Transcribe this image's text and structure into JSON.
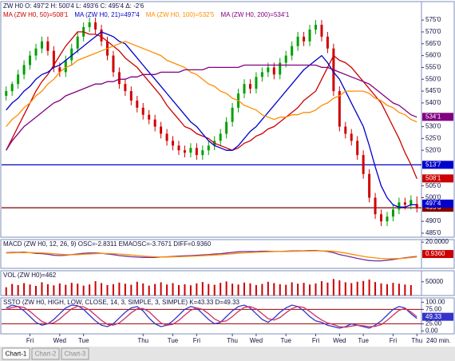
{
  "chart_data": [
    {
      "type": "candlestick",
      "title": "ZW H0 O: 497'2 H: 500'4 L: 493'6 C: 495'4 Δ: -2'6",
      "categories": [
        null,
        null,
        null,
        null,
        "Fri",
        null,
        null,
        null,
        null,
        "Wed",
        null,
        null,
        null,
        "Tue",
        null,
        null,
        null,
        null,
        null,
        null,
        null,
        null,
        null,
        "Thu",
        null,
        null,
        null,
        null,
        "Tue",
        null,
        null,
        null,
        "Fri",
        null,
        null,
        null,
        null,
        null,
        "Thu",
        null,
        null,
        null,
        "Wed",
        null,
        null,
        null,
        null,
        "Tue",
        null,
        null,
        null,
        null,
        "Fri",
        null,
        null,
        null,
        "Wed",
        null,
        null,
        null,
        "Tue",
        null,
        null,
        null,
        null,
        "Fri",
        null,
        null,
        null,
        "Thu"
      ],
      "open": [
        543,
        545,
        548,
        552,
        556,
        560,
        563,
        566,
        562,
        555,
        553,
        558,
        563,
        568,
        572,
        574,
        571,
        566,
        560,
        553,
        548,
        545,
        541,
        538,
        535,
        533,
        530,
        527,
        524,
        522,
        520,
        519,
        521,
        518,
        520,
        522,
        524,
        527,
        532,
        538,
        544,
        548,
        546,
        551,
        553,
        555,
        552,
        557,
        560,
        564,
        568,
        566,
        571,
        573,
        568,
        563,
        545,
        530,
        527,
        524,
        518,
        510,
        500,
        493,
        490,
        492,
        495,
        498,
        497,
        497.25
      ],
      "high": [
        547,
        549,
        554,
        558,
        562,
        565,
        568,
        568,
        564,
        557,
        560,
        565,
        570,
        574,
        576,
        576,
        573,
        568,
        562,
        555,
        550,
        547,
        543,
        540,
        537,
        535,
        532,
        529,
        526,
        524,
        522,
        523,
        523,
        522,
        524,
        526,
        529,
        534,
        540,
        546,
        550,
        550,
        553,
        555,
        557,
        557,
        559,
        562,
        566,
        570,
        570,
        573,
        575,
        575,
        570,
        565,
        547,
        532,
        529,
        526,
        520,
        512,
        502,
        495,
        494,
        497,
        500,
        500,
        501,
        500.5
      ],
      "low": [
        541,
        543,
        546,
        550,
        554,
        558,
        561,
        560,
        553,
        551,
        551,
        556,
        561,
        566,
        570,
        569,
        564,
        558,
        551,
        546,
        543,
        539,
        536,
        533,
        531,
        528,
        525,
        522,
        520,
        518,
        517,
        517,
        516,
        516,
        518,
        520,
        522,
        525,
        530,
        536,
        542,
        544,
        544,
        549,
        551,
        550,
        550,
        555,
        558,
        562,
        564,
        564,
        569,
        566,
        561,
        543,
        528,
        525,
        522,
        516,
        508,
        498,
        491,
        488,
        488,
        490,
        493,
        495,
        495,
        493.75
      ],
      "close": [
        545,
        548,
        552,
        556,
        560,
        563,
        566,
        562,
        555,
        553,
        558,
        563,
        568,
        572,
        574,
        571,
        566,
        560,
        553,
        548,
        545,
        541,
        538,
        535,
        533,
        530,
        527,
        524,
        522,
        520,
        519,
        521,
        518,
        520,
        522,
        524,
        527,
        532,
        538,
        544,
        548,
        546,
        551,
        553,
        555,
        552,
        557,
        560,
        564,
        568,
        566,
        571,
        573,
        568,
        563,
        545,
        530,
        527,
        524,
        518,
        510,
        500,
        493,
        490,
        492,
        495,
        498,
        497,
        499,
        495.5
      ],
      "up_color": "#00a000",
      "down_color": "#d00000",
      "series": [
        {
          "name": "MA (ZW H0, 50)=508'1",
          "color": "#cc0000",
          "values": [
            520,
            525,
            530,
            535,
            540,
            545,
            549,
            552,
            556,
            560,
            564,
            567,
            570,
            570,
            569,
            569,
            568,
            566,
            564,
            562,
            559,
            557,
            555,
            552,
            549,
            546,
            543,
            539,
            536,
            533,
            530,
            529,
            527,
            526,
            525,
            523,
            522,
            521,
            520,
            521,
            523,
            524,
            526,
            527,
            529,
            530,
            532,
            534,
            536,
            538,
            541,
            543,
            545,
            550,
            555,
            560,
            558,
            557,
            555,
            552,
            549,
            546,
            543,
            540,
            535,
            530,
            525,
            519,
            514,
            508
          ]
        },
        {
          "name": "MA (ZW H0, 21)=497'4",
          "color": "#0000cc",
          "values": [
            537,
            540,
            542,
            545,
            547,
            550,
            552,
            553,
            555,
            556,
            558,
            560,
            562,
            564,
            566,
            568,
            570,
            569,
            568,
            566,
            565,
            562,
            559,
            556,
            553,
            550,
            547,
            544,
            541,
            538,
            535,
            532,
            530,
            527,
            524,
            522,
            521,
            520,
            520,
            522,
            525,
            528,
            530,
            533,
            536,
            539,
            542,
            545,
            548,
            551,
            554,
            556,
            558,
            560,
            557,
            553,
            550,
            545,
            540,
            535,
            530,
            522,
            513,
            505,
            500,
            497,
            496,
            496,
            497,
            497
          ]
        },
        {
          "name": "MA (ZW H0, 100)=532'5",
          "color": "#ff8c00",
          "values": [
            530,
            533,
            535,
            538,
            540,
            543,
            545,
            548,
            550,
            553,
            555,
            556,
            558,
            559,
            560,
            561,
            562,
            563,
            564,
            565,
            566,
            565,
            564,
            563,
            562,
            561,
            560,
            558,
            557,
            556,
            555,
            553,
            552,
            550,
            548,
            547,
            545,
            544,
            542,
            541,
            539,
            538,
            537,
            535,
            534,
            533,
            534,
            534,
            535,
            535,
            536,
            536,
            537,
            539,
            540,
            542,
            543,
            545,
            545,
            545,
            545,
            544,
            542,
            541,
            539,
            538,
            536,
            535,
            533,
            532
          ]
        },
        {
          "name": "MA (ZW H0, 200)=534'1",
          "color": "#800080",
          "values": [
            520,
            524,
            527,
            530,
            532,
            534,
            536,
            538,
            540,
            541,
            543,
            544,
            545,
            546,
            547,
            548,
            548,
            549,
            549,
            550,
            550,
            551,
            551,
            552,
            552,
            552,
            553,
            553,
            553,
            553,
            554,
            554,
            554,
            554,
            555,
            555,
            555,
            555,
            555,
            555,
            556,
            556,
            556,
            556,
            556,
            556,
            556,
            556,
            556,
            556,
            556,
            556,
            556,
            555,
            555,
            554,
            553,
            552,
            551,
            550,
            549,
            548,
            546,
            544,
            542,
            540,
            539,
            537,
            535,
            534
          ]
        }
      ],
      "ylim": [
        483.3,
        582.8
      ],
      "yticks": [
        {
          "value": 575,
          "label": "575'0"
        },
        {
          "value": 570,
          "label": "570'0"
        },
        {
          "value": 565,
          "label": "565'0"
        },
        {
          "value": 560,
          "label": "560'0"
        },
        {
          "value": 555,
          "label": "555'0"
        },
        {
          "value": 550,
          "label": "550'0"
        },
        {
          "value": 545,
          "label": "545'0"
        },
        {
          "value": 540,
          "label": "540'0"
        },
        {
          "value": 530,
          "label": "530'0"
        },
        {
          "value": 525,
          "label": "525'0"
        },
        {
          "value": 520,
          "label": "520'0"
        },
        {
          "value": 505,
          "label": "505'0"
        },
        {
          "value": 500,
          "label": "500'0"
        },
        {
          "value": 490,
          "label": "490'0"
        },
        {
          "value": 485,
          "label": "485'0"
        }
      ],
      "hlines": [
        {
          "value": 513.875,
          "label": "513'7",
          "color": "#0000cc"
        },
        {
          "value": 495.75,
          "label": "495'6",
          "color": "#800000"
        }
      ],
      "flags": [
        {
          "value": 534.125,
          "label": "534'1",
          "color": "#800080"
        },
        {
          "value": 508.125,
          "label": "508'1",
          "color": "#cc0000"
        },
        {
          "value": 497.5,
          "label": "497'4",
          "color": "#0000cc"
        }
      ]
    },
    {
      "type": "line",
      "title": "MACD (ZW H0, 12, 26, 9) OSC=-2.8311 EMAOSC=-3.7671 DIFF=0.9360",
      "series": [
        {
          "color": "#7030a0",
          "values": [
            3,
            3.5,
            3.5,
            4,
            3,
            2,
            1.5,
            0.5,
            -1,
            -1.5,
            -1,
            0,
            1,
            2,
            2.5,
            2.5,
            2,
            1,
            0,
            -1.5,
            -2.5,
            -3.5,
            -4,
            -4.5,
            -4.5,
            -4.5,
            -4,
            -3.5,
            -3,
            -2.5,
            -2,
            -1.5,
            -1,
            -0.5,
            0,
            1,
            1.5,
            2.5,
            3.5,
            4.5,
            5,
            5,
            5,
            5.5,
            5.5,
            5,
            5,
            5.5,
            6,
            6,
            6,
            6.5,
            6.5,
            6,
            5,
            3,
            0,
            -2,
            -4,
            -6,
            -8,
            -9.5,
            -10,
            -10,
            -9,
            -8,
            -6.5,
            -5,
            -4,
            -2.8311
          ]
        },
        {
          "color": "#ff8c00",
          "values": [
            2.5,
            2.8,
            3,
            3.2,
            3.3,
            3,
            2.6,
            2,
            1.3,
            0.6,
            0,
            -0.3,
            0,
            0.5,
            1,
            1.5,
            1.8,
            1.8,
            1.5,
            0.9,
            0.2,
            -0.7,
            -1.5,
            -2.3,
            -3,
            -3.5,
            -3.8,
            -3.8,
            -3.6,
            -3.3,
            -3,
            -2.6,
            -2.2,
            -1.7,
            -1.2,
            -0.6,
            0,
            0.7,
            1.4,
            2.1,
            2.8,
            3.4,
            3.8,
            4.2,
            4.6,
            4.8,
            4.9,
            5,
            5.2,
            5.4,
            5.6,
            5.8,
            6,
            6,
            5.8,
            5.2,
            4,
            2.5,
            0.8,
            -1,
            -2.8,
            -4.2,
            -5.3,
            -6.1,
            -6.5,
            -6.6,
            -6.3,
            -5.6,
            -4.7,
            -3.7671
          ]
        }
      ],
      "ylim": [
        -22,
        24
      ],
      "yticks": [
        {
          "value": 20,
          "label": "20.0000"
        }
      ],
      "flags": [
        {
          "value": 0.936,
          "label": "0.9360",
          "color": "#cc0000"
        }
      ]
    },
    {
      "type": "bar",
      "title": "VOL (ZW H0)=462",
      "color": "#cc0000",
      "values": [
        30000,
        42000,
        38000,
        45000,
        40000,
        35000,
        48000,
        41000,
        37000,
        44000,
        39000,
        46000,
        43000,
        36000,
        40000,
        52000,
        45000,
        38000,
        41000,
        47000,
        43000,
        39000,
        50000,
        44000,
        36000,
        42000,
        48000,
        40000,
        45000,
        38000,
        41000,
        37000,
        44000,
        49000,
        42000,
        39000,
        46000,
        51000,
        43000,
        40000,
        47000,
        44000,
        38000,
        42000,
        50000,
        45000,
        41000,
        39000,
        48000,
        43000,
        46000,
        40000,
        44000,
        52000,
        47000,
        60000,
        55000,
        48000,
        45000,
        50000,
        53000,
        58000,
        49000,
        44000,
        41000,
        46000,
        43000,
        40000,
        38000,
        462
      ],
      "ylim": [
        0,
        90000
      ],
      "yticks": [
        50000
      ]
    },
    {
      "type": "line",
      "title": "SSTO (ZW H0, HIGH, LOW, CLOSE, 14, 3, SIMPLE, 3, SIMPLE) K=43.33 D=49.33",
      "series": [
        {
          "color": "#3333cc",
          "values": [
            80,
            90,
            85,
            70,
            50,
            30,
            20,
            25,
            40,
            60,
            80,
            90,
            88,
            75,
            55,
            35,
            20,
            15,
            25,
            45,
            65,
            80,
            85,
            70,
            45,
            25,
            15,
            20,
            35,
            55,
            75,
            85,
            80,
            60,
            40,
            25,
            30,
            50,
            70,
            85,
            90,
            80,
            60,
            40,
            30,
            45,
            65,
            80,
            90,
            85,
            70,
            50,
            35,
            30,
            20,
            15,
            10,
            15,
            25,
            20,
            15,
            10,
            20,
            35,
            55,
            75,
            85,
            80,
            60,
            43.33
          ]
        },
        {
          "color": "#cc3366",
          "values": [
            75,
            82,
            85,
            82,
            68,
            50,
            33,
            25,
            28,
            42,
            60,
            77,
            86,
            84,
            73,
            55,
            37,
            23,
            20,
            28,
            45,
            63,
            77,
            78,
            67,
            47,
            28,
            20,
            23,
            37,
            55,
            72,
            80,
            75,
            60,
            42,
            32,
            35,
            50,
            68,
            82,
            85,
            77,
            60,
            43,
            38,
            47,
            63,
            78,
            85,
            82,
            68,
            52,
            38,
            28,
            22,
            15,
            13,
            17,
            20,
            18,
            15,
            16,
            22,
            37,
            55,
            72,
            78,
            66,
            49.33
          ]
        }
      ],
      "ylim": [
        -10,
        115
      ],
      "yticks": [
        {
          "value": 100,
          "label": "100.00"
        },
        {
          "value": 75,
          "label": "75.00"
        },
        {
          "value": 25,
          "label": "25.00"
        },
        {
          "value": 0,
          "label": "0.00"
        }
      ],
      "reference_lines": [
        75,
        25
      ],
      "flags": [
        {
          "value": 49.33,
          "label": "49.33",
          "color": "#3333cc"
        }
      ]
    }
  ],
  "tabs": [
    "Chart-1",
    "Chart-2",
    "Chart-3"
  ],
  "timeframe": "240 min."
}
